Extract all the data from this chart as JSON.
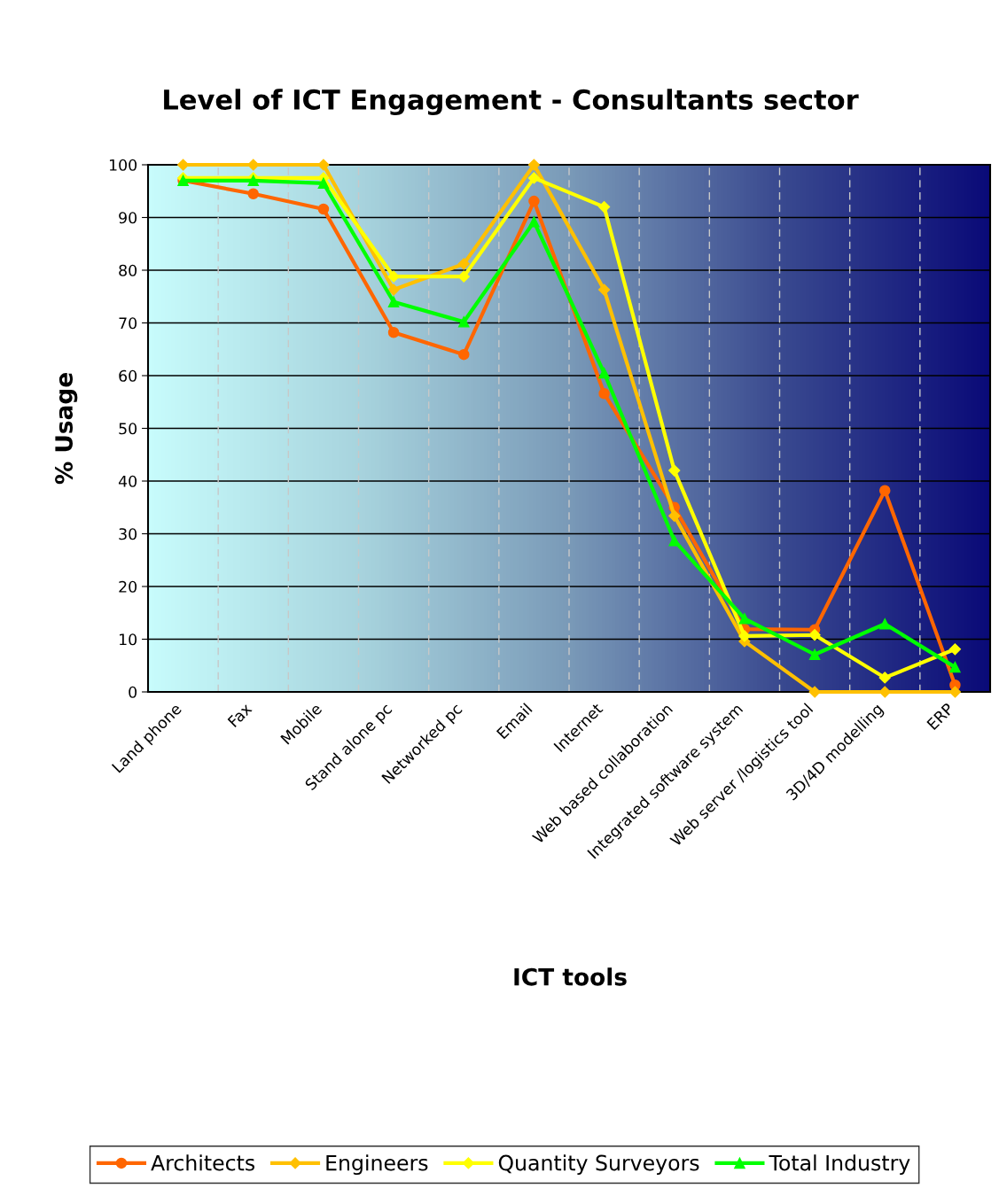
{
  "chart_data": {
    "type": "line",
    "title": "Level of ICT Engagement - Consultants sector",
    "xlabel": "ICT tools",
    "ylabel": "% Usage",
    "categories": [
      "Land phone",
      "Fax",
      "Mobile",
      "Stand alone pc",
      "Networked pc",
      "Email",
      "Internet",
      "Web based collaboration",
      "Integrated software system",
      "Web server /logistics tool",
      "3D/4D modelling",
      "ERP"
    ],
    "series": [
      {
        "name": "Architects",
        "color": "#ff6600",
        "marker": "circle",
        "values": [
          97,
          94.5,
          91.6,
          68.2,
          64,
          93.1,
          56.6,
          35,
          11.9,
          11.8,
          38.2,
          1.3
        ]
      },
      {
        "name": "Engineers",
        "color": "#ffc000",
        "marker": "diamond",
        "values": [
          100,
          100,
          100,
          76.3,
          81.2,
          100,
          76.3,
          33.4,
          9.6,
          0,
          0,
          0
        ]
      },
      {
        "name": "Quantity Surveyors",
        "color": "#ffff00",
        "marker": "diamond",
        "values": [
          97.5,
          97.5,
          97.5,
          78.8,
          78.8,
          97.5,
          92,
          42,
          10.6,
          10.8,
          2.7,
          8.1
        ]
      },
      {
        "name": "Total Industry",
        "color": "#00ff00",
        "marker": "triangle",
        "values": [
          97,
          97,
          96.5,
          74,
          70.2,
          89.2,
          60.5,
          28.7,
          13.9,
          7.1,
          12.9,
          4.7
        ]
      }
    ],
    "ylim": [
      0,
      100
    ],
    "yticks": [
      0,
      10,
      20,
      30,
      40,
      50,
      60,
      70,
      80,
      90,
      100
    ],
    "grid": true,
    "legend": "bottom",
    "line_style": "solid"
  }
}
